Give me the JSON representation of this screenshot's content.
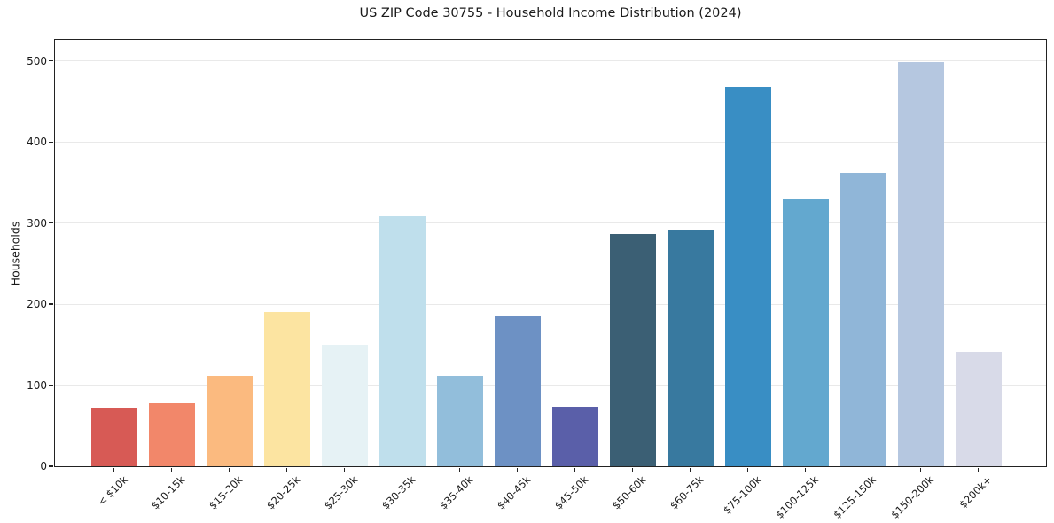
{
  "chart_data": {
    "type": "bar",
    "title": "US ZIP Code 30755 - Household Income Distribution (2024)",
    "xlabel": "",
    "ylabel": "Households",
    "categories": [
      "< $10k",
      "$10-15k",
      "$15-20k",
      "$20-25k",
      "$25-30k",
      "$30-35k",
      "$35-40k",
      "$40-45k",
      "$45-50k",
      "$50-60k",
      "$60-75k",
      "$75-100k",
      "$100-125k",
      "$125-150k",
      "$150-200k",
      "$200k+"
    ],
    "values": [
      72,
      78,
      112,
      190,
      150,
      308,
      112,
      185,
      73,
      286,
      292,
      468,
      330,
      362,
      499,
      141
    ],
    "bar_colors": [
      "#d75a55",
      "#f2876a",
      "#fbba7f",
      "#fce4a1",
      "#e6f2f5",
      "#bfdfec",
      "#92bedb",
      "#6d91c4",
      "#5a5fa9",
      "#3b5f74",
      "#38799f",
      "#398ec4",
      "#63a8cf",
      "#90b6d8",
      "#b5c7e0",
      "#d8dae8"
    ],
    "yticks": [
      0,
      100,
      200,
      300,
      400,
      500
    ],
    "ylim": [
      0,
      526
    ],
    "grid": "horizontal",
    "legend": "none",
    "x_tick_rotation_deg": 45,
    "colors": {
      "background": "#ffffff",
      "gridline": "#e9e9e9",
      "axis": "#222222",
      "text": "#1a1a1a"
    }
  }
}
